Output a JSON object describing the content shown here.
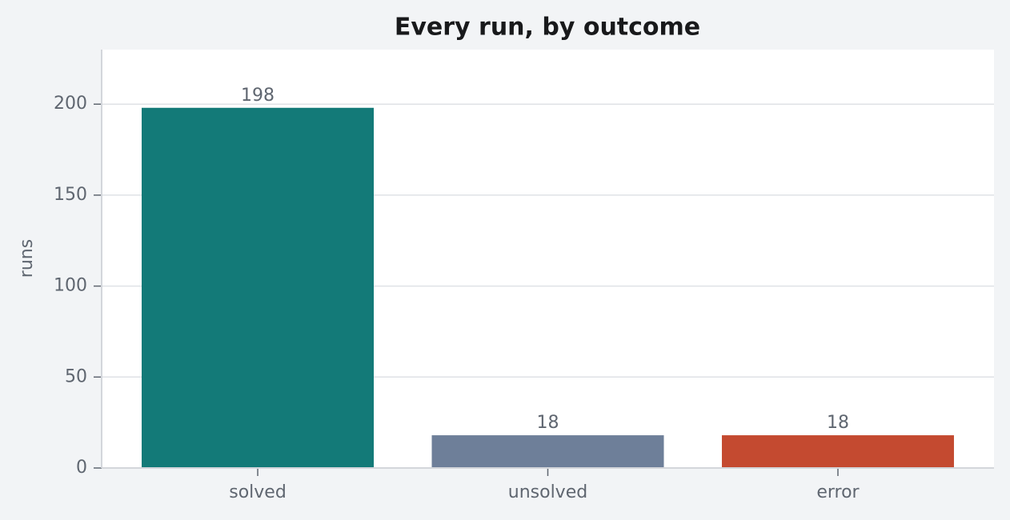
{
  "chart_data": {
    "type": "bar",
    "title": "Every run, by outcome",
    "y_label": "runs",
    "categories": [
      "solved",
      "unsolved",
      "error"
    ],
    "values": [
      198,
      18,
      18
    ],
    "colors": [
      "#137a78",
      "#6e7f99",
      "#c44a30"
    ],
    "ylim": [
      0,
      230
    ],
    "yticks": [
      0,
      50,
      100,
      150,
      200
    ],
    "grid": true,
    "data_labels": true
  }
}
